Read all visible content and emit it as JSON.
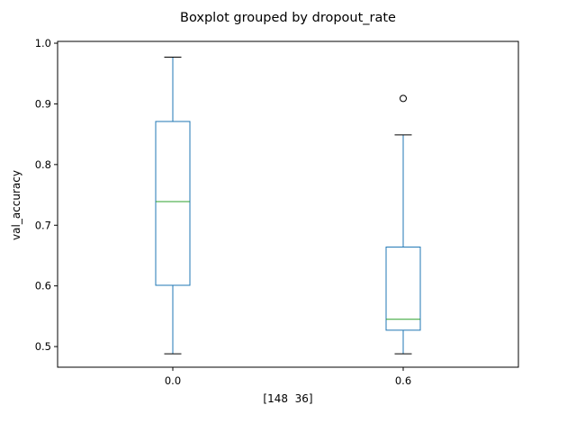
{
  "chart_data": {
    "type": "boxplot",
    "title": "Boxplot grouped by dropout_rate",
    "xlabel": "[148  36]",
    "ylabel": "val_accuracy",
    "ylim": [
      0.466,
      1.003
    ],
    "yticks": [
      0.5,
      0.6,
      0.7,
      0.8,
      0.9,
      1.0
    ],
    "ytick_labels": [
      "0.5",
      "0.6",
      "0.7",
      "0.8",
      "0.9",
      "1.0"
    ],
    "grid": false,
    "categories": [
      "0.0",
      "0.6"
    ],
    "boxes": [
      {
        "category": "0.0",
        "whisker_low": 0.488,
        "q1": 0.601,
        "median": 0.739,
        "q3": 0.871,
        "whisker_high": 0.977,
        "outliers": []
      },
      {
        "category": "0.6",
        "whisker_low": 0.488,
        "q1": 0.527,
        "median": 0.545,
        "q3": 0.664,
        "whisker_high": 0.849,
        "outliers": [
          0.909
        ]
      }
    ],
    "colors": {
      "box": "#1f77b4",
      "median": "#2ca02c",
      "cap": "#000000",
      "outlier": "#000000"
    }
  }
}
